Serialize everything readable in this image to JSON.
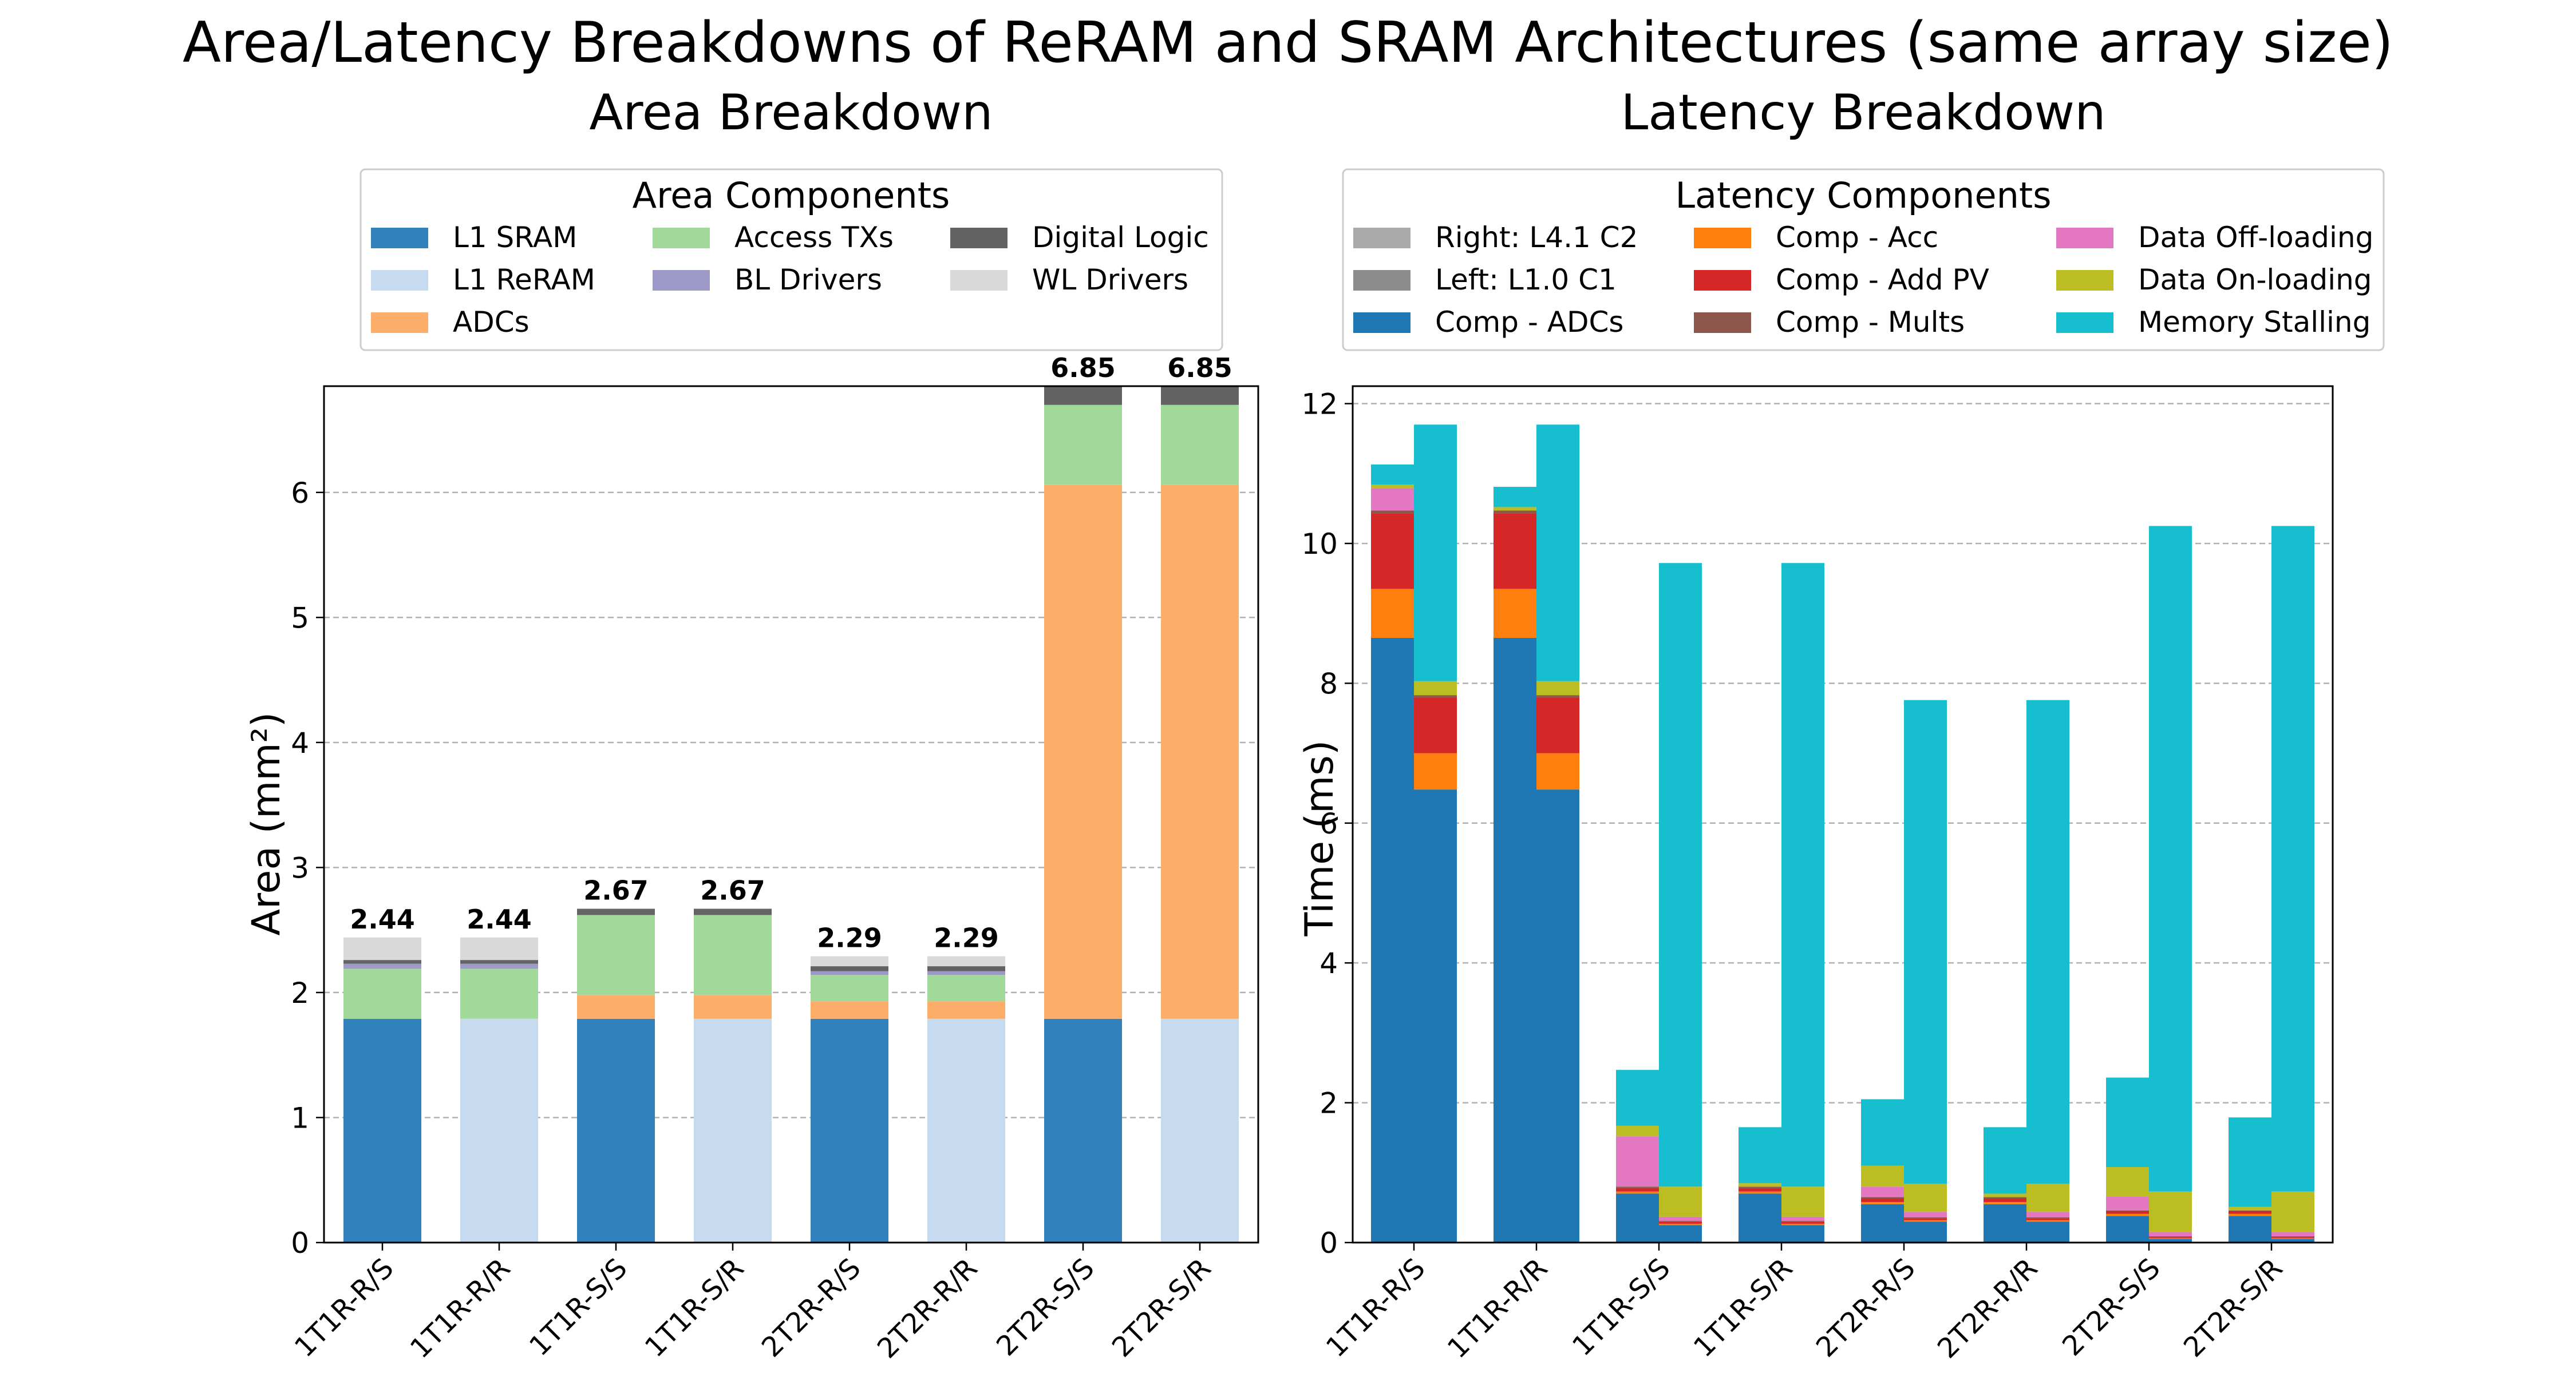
{
  "figure_title": "Area/Latency Breakdowns of ReRAM and SRAM Architectures (same array size)",
  "chart_data": [
    {
      "type": "bar",
      "stacked": true,
      "title": "Area Breakdown",
      "xlabel": "",
      "ylabel": "Area (mm²)",
      "ylim": [
        0,
        6.85
      ],
      "yticks": [
        0,
        1,
        2,
        3,
        4,
        5,
        6
      ],
      "grid": "y-dashed",
      "legend_title": "Area Components",
      "legend_position": "top-center-outside",
      "legend_entries": [
        "L1 SRAM",
        "L1 ReRAM",
        "ADCs",
        "Access TXs",
        "BL Drivers",
        "Digital Logic",
        "WL Drivers"
      ],
      "categories": [
        "1T1R-R/S",
        "1T1R-R/R",
        "1T1R-S/S",
        "1T1R-S/R",
        "2T2R-R/S",
        "2T2R-R/R",
        "2T2R-S/S",
        "2T2R-S/R"
      ],
      "totals": [
        "2.44",
        "2.44",
        "2.67",
        "2.67",
        "2.29",
        "2.29",
        "6.85",
        "6.85"
      ],
      "series": [
        {
          "name": "L1 SRAM",
          "color": "#3182bd",
          "values": [
            1.79,
            0,
            1.79,
            0,
            1.79,
            0,
            1.79,
            0
          ]
        },
        {
          "name": "L1 ReRAM",
          "color": "#c6dbef",
          "values": [
            0,
            1.79,
            0,
            1.79,
            0,
            1.79,
            0,
            1.79
          ]
        },
        {
          "name": "ADCs",
          "color": "#fdae6b",
          "values": [
            0.0,
            0.0,
            0.19,
            0.19,
            0.14,
            0.14,
            4.27,
            4.27
          ]
        },
        {
          "name": "Access TXs",
          "color": "#a1d99b",
          "values": [
            0.4,
            0.4,
            0.64,
            0.64,
            0.21,
            0.21,
            0.64,
            0.64
          ]
        },
        {
          "name": "BL Drivers",
          "color": "#9e9ac8",
          "values": [
            0.04,
            0.04,
            0.0,
            0.0,
            0.03,
            0.03,
            0.0,
            0.0
          ]
        },
        {
          "name": "Digital Logic",
          "color": "#636363",
          "values": [
            0.03,
            0.03,
            0.05,
            0.05,
            0.04,
            0.04,
            0.15,
            0.15
          ]
        },
        {
          "name": "WL Drivers",
          "color": "#d9d9d9",
          "values": [
            0.18,
            0.18,
            0.0,
            0.0,
            0.08,
            0.08,
            0.0,
            0.0
          ]
        }
      ]
    },
    {
      "type": "bar",
      "stacked": true,
      "grouped": true,
      "title": "Latency Breakdown",
      "xlabel": "",
      "ylabel": "Time (ms)",
      "ylim": [
        0,
        12.25
      ],
      "yticks": [
        0,
        2,
        4,
        6,
        8,
        10,
        12
      ],
      "grid": "y-dashed",
      "legend_title": "Latency Components",
      "legend_position": "top-center-outside",
      "legend_entries": [
        "Right: L4.1 C2",
        "Left: L1.0 C1",
        "Comp - ADCs",
        "Comp - Acc",
        "Comp - Add PV",
        "Comp - Mults",
        "Data Off-loading",
        "Data On-loading",
        "Memory Stalling"
      ],
      "legend_colors": [
        "#aaaaaa",
        "#8c8c8c",
        "#1f77b4",
        "#ff7f0e",
        "#d62728",
        "#8c564b",
        "#e377c2",
        "#bcbd22",
        "#17becf"
      ],
      "categories": [
        "1T1R-R/S",
        "1T1R-R/R",
        "1T1R-S/S",
        "1T1R-S/R",
        "2T2R-R/S",
        "2T2R-R/R",
        "2T2R-S/S",
        "2T2R-S/R"
      ],
      "groups": [
        "Left: L1.0 C1",
        "Right: L4.1 C2"
      ],
      "series": [
        {
          "name": "Comp - ADCs",
          "color": "#1f77b4",
          "left": [
            8.65,
            8.65,
            0.7,
            0.7,
            0.55,
            0.55,
            0.38,
            0.38
          ],
          "right": [
            6.48,
            6.48,
            0.25,
            0.25,
            0.3,
            0.3,
            0.05,
            0.05
          ]
        },
        {
          "name": "Comp - Acc",
          "color": "#ff7f0e",
          "left": [
            0.7,
            0.7,
            0.03,
            0.03,
            0.03,
            0.03,
            0.03,
            0.03
          ],
          "right": [
            0.52,
            0.52,
            0.02,
            0.02,
            0.02,
            0.02,
            0.01,
            0.01
          ]
        },
        {
          "name": "Comp - Add PV",
          "color": "#d62728",
          "left": [
            1.08,
            1.08,
            0.05,
            0.05,
            0.05,
            0.05,
            0.04,
            0.04
          ],
          "right": [
            0.8,
            0.8,
            0.03,
            0.03,
            0.03,
            0.03,
            0.02,
            0.02
          ]
        },
        {
          "name": "Comp - Mults",
          "color": "#8c564b",
          "left": [
            0.04,
            0.04,
            0.02,
            0.02,
            0.02,
            0.02,
            0.01,
            0.01
          ],
          "right": [
            0.03,
            0.03,
            0.01,
            0.01,
            0.01,
            0.01,
            0.01,
            0.01
          ]
        },
        {
          "name": "Data Off-loading",
          "color": "#e377c2",
          "left": [
            0.32,
            0.0,
            0.72,
            0.0,
            0.15,
            0.0,
            0.2,
            0.0
          ],
          "right": [
            0.0,
            0.0,
            0.06,
            0.06,
            0.08,
            0.08,
            0.06,
            0.06
          ]
        },
        {
          "name": "Data On-loading",
          "color": "#bcbd22",
          "left": [
            0.05,
            0.05,
            0.15,
            0.05,
            0.3,
            0.05,
            0.42,
            0.05
          ],
          "right": [
            0.2,
            0.2,
            0.43,
            0.43,
            0.4,
            0.4,
            0.58,
            0.58
          ]
        },
        {
          "name": "Memory Stalling",
          "color": "#17becf",
          "left": [
            0.29,
            0.29,
            0.8,
            0.8,
            0.95,
            0.95,
            1.28,
            1.28
          ],
          "right": [
            3.67,
            3.67,
            8.92,
            8.92,
            6.92,
            6.92,
            9.52,
            9.52
          ]
        }
      ]
    }
  ]
}
